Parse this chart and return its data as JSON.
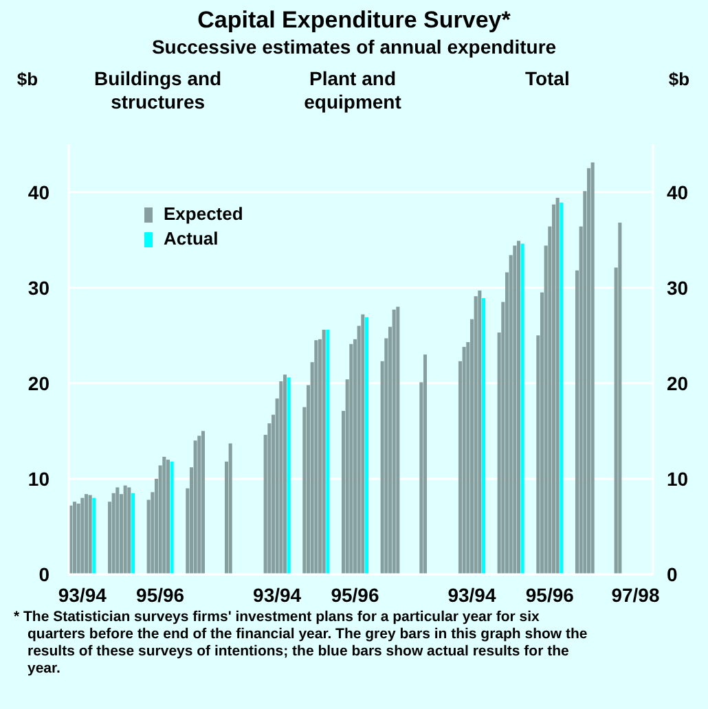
{
  "chart_data": {
    "type": "bar",
    "title": "Capital Expenditure Survey*",
    "subtitle": "Successive estimates of annual expenditure",
    "ylabel": "$b",
    "y2label": "$b",
    "categories": [
      null,
      null,
      null,
      "93/94",
      null,
      null,
      null,
      null,
      null,
      null,
      null,
      null,
      null,
      null,
      null,
      null,
      null,
      null,
      null,
      null,
      null,
      null,
      null,
      "95/96",
      null,
      null,
      null,
      null,
      null,
      null,
      null,
      null,
      null,
      null,
      null,
      null,
      null,
      null,
      null,
      null,
      null,
      null,
      null,
      null,
      null,
      null,
      null,
      null,
      null,
      null,
      null,
      null,
      null,
      "93/94",
      null,
      null,
      null,
      null,
      null,
      null,
      null,
      null,
      null,
      null,
      null,
      null,
      null,
      null,
      null,
      null,
      null,
      null,
      null,
      "95/96",
      null,
      null,
      null,
      null,
      null,
      null,
      null,
      null,
      null,
      null,
      null,
      null,
      null,
      null,
      null,
      null,
      null,
      null,
      null,
      null,
      null,
      null,
      null,
      null,
      null,
      null,
      null,
      null,
      null,
      "93/94",
      null,
      null,
      null,
      null,
      null,
      null,
      null,
      null,
      null,
      null,
      null,
      null,
      null,
      null,
      null,
      null,
      null,
      null,
      null,
      "95/96",
      null,
      null,
      null,
      null,
      null,
      null,
      null,
      null,
      null,
      null,
      null,
      null,
      null,
      null,
      null,
      null,
      null,
      null,
      null,
      null,
      null,
      "97/98",
      null,
      null,
      null,
      null
    ],
    "series": [
      {
        "name": "Expected",
        "color": "#869e9e",
        "values": [
          7.2,
          7.6,
          7.4,
          8.0,
          8.4,
          8.3,
          null,
          null,
          null,
          null,
          7.6,
          8.5,
          9.1,
          8.4,
          9.3,
          9.1,
          null,
          null,
          null,
          null,
          7.8,
          8.6,
          10.0,
          11.4,
          12.3,
          12.0,
          null,
          null,
          null,
          null,
          9.0,
          11.2,
          14.0,
          14.5,
          15.0,
          null,
          null,
          null,
          null,
          null,
          11.8,
          13.7,
          null,
          null,
          null,
          null,
          null,
          null,
          null,
          null,
          14.6,
          15.8,
          16.7,
          18.4,
          20.2,
          20.9,
          null,
          null,
          null,
          null,
          17.5,
          19.8,
          22.2,
          24.5,
          24.6,
          25.6,
          null,
          null,
          null,
          null,
          17.1,
          20.4,
          24.1,
          24.6,
          26.0,
          27.2,
          null,
          null,
          null,
          null,
          22.3,
          24.7,
          25.9,
          27.7,
          28.0,
          null,
          null,
          null,
          null,
          null,
          20.1,
          23.0,
          null,
          null,
          null,
          null,
          null,
          null,
          null,
          null,
          22.3,
          23.8,
          24.3,
          26.7,
          29.1,
          29.7,
          null,
          null,
          null,
          null,
          25.3,
          28.5,
          31.6,
          33.4,
          34.4,
          34.9,
          null,
          null,
          null,
          null,
          25.0,
          29.5,
          34.4,
          36.4,
          38.7,
          39.4,
          null,
          null,
          null,
          null,
          31.8,
          36.4,
          40.1,
          42.5,
          43.1,
          null,
          null,
          null,
          null,
          null,
          32.1,
          36.8,
          null,
          null,
          null,
          null,
          null,
          null,
          null,
          null
        ]
      },
      {
        "name": "Actual",
        "color": "#00ffff",
        "values": [
          null,
          null,
          null,
          null,
          null,
          null,
          8.0,
          null,
          null,
          null,
          null,
          null,
          null,
          null,
          null,
          null,
          8.5,
          null,
          null,
          null,
          null,
          null,
          null,
          null,
          null,
          null,
          11.8,
          null,
          null,
          null,
          null,
          null,
          null,
          null,
          null,
          null,
          null,
          null,
          null,
          null,
          null,
          null,
          null,
          null,
          null,
          null,
          null,
          null,
          null,
          null,
          null,
          null,
          null,
          null,
          null,
          null,
          20.6,
          null,
          null,
          null,
          null,
          null,
          null,
          null,
          null,
          null,
          25.6,
          null,
          null,
          null,
          null,
          null,
          null,
          null,
          null,
          null,
          26.9,
          null,
          null,
          null,
          null,
          null,
          null,
          null,
          null,
          null,
          null,
          null,
          null,
          null,
          null,
          null,
          null,
          null,
          null,
          null,
          null,
          null,
          null,
          null,
          null,
          null,
          null,
          null,
          null,
          null,
          28.9,
          null,
          null,
          null,
          null,
          null,
          null,
          null,
          null,
          null,
          34.6,
          null,
          null,
          null,
          null,
          null,
          null,
          null,
          null,
          null,
          38.9,
          null,
          null,
          null,
          null,
          null,
          null,
          null,
          null,
          null,
          null,
          null,
          null,
          null,
          null,
          null,
          null,
          null,
          null,
          null,
          null,
          null,
          null,
          null
        ]
      }
    ],
    "ylim": [
      0,
      45
    ],
    "yticks": [
      0,
      10,
      20,
      30,
      40
    ],
    "y2lim": [
      0,
      45
    ],
    "y2ticks": [
      0,
      10,
      20,
      30,
      40
    ],
    "grid": "y",
    "legend": "top left",
    "annotations": [
      "Buildings and structures",
      "Plant and equipment",
      "Total",
      "* The Statistician surveys firms' investment plans for a particular year for six quarters before the end of the financial year.  The grey bars in this graph show the results of these surveys of intentions; the blue bars show actual results for the year."
    ]
  }
}
